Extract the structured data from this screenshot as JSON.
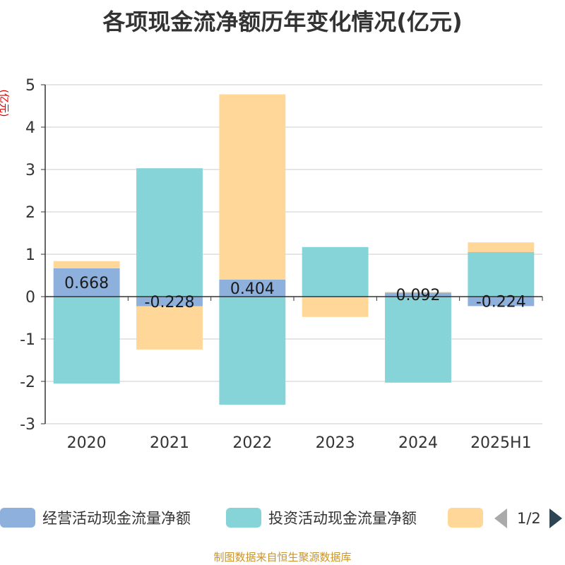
{
  "title": "各项现金流净额历年变化情况(亿元)",
  "y_unit_label": "(亿元)",
  "legend": {
    "items": [
      {
        "label": "经营活动现金流量净额",
        "color": "#8eb0dd"
      },
      {
        "label": "投资活动现金流量净额",
        "color": "#86d4d8"
      },
      {
        "label": "",
        "color": "#ffd899"
      }
    ],
    "pager_text": "1/2"
  },
  "footer": "制图数据来自恒生聚源数据库",
  "colors": {
    "axis": "#333333",
    "grid": "#cccccc",
    "label": "#1a1a1a"
  },
  "chart_data": {
    "type": "bar",
    "stacked": true,
    "categories": [
      "2020",
      "2021",
      "2022",
      "2023",
      "2024",
      "2025H1"
    ],
    "ylim": [
      -3,
      5
    ],
    "yticks": [
      -3,
      -2,
      -1,
      0,
      1,
      2,
      3,
      4,
      5
    ],
    "grid": true,
    "legend_position": "bottom",
    "series": [
      {
        "name": "经营活动现金流量净额",
        "color": "#8eb0dd",
        "values": [
          0.668,
          -0.228,
          0.404,
          0.0,
          0.092,
          -0.224
        ],
        "data_labels": [
          "0.668",
          "-0.228",
          "0.404",
          "",
          "0.092",
          "-0.224"
        ]
      },
      {
        "name": "投资活动现金流量净额",
        "color": "#86d4d8",
        "values": [
          -2.05,
          3.03,
          -2.55,
          1.17,
          -2.03,
          1.05
        ]
      },
      {
        "color": "#ffd899",
        "values": [
          0.17,
          -1.02,
          4.37,
          -0.48,
          0.02,
          0.23
        ]
      }
    ]
  }
}
